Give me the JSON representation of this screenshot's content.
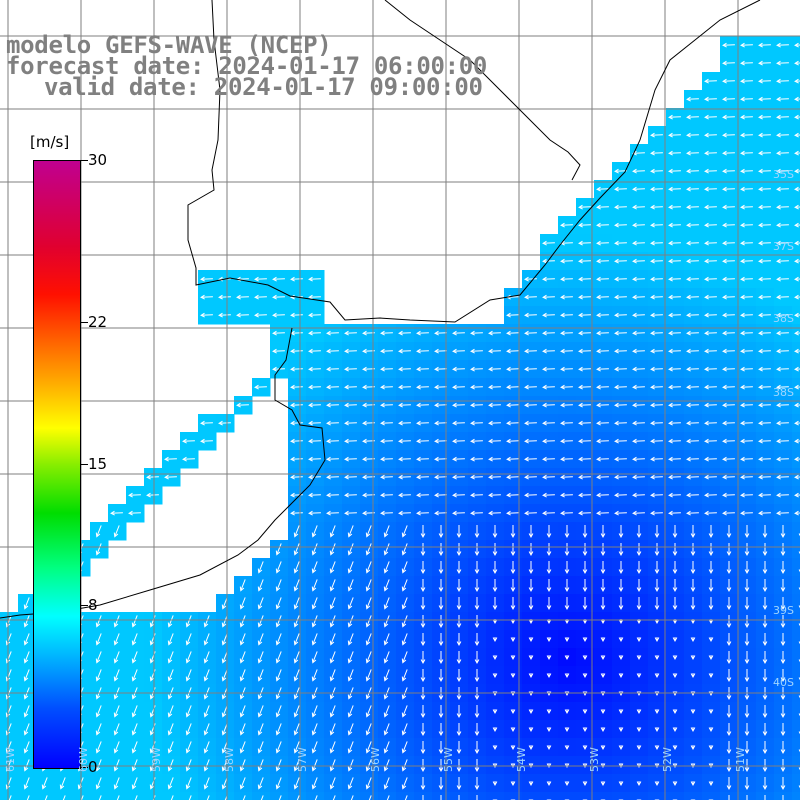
{
  "title": {
    "model": "modelo GEFS-WAVE (NCEP)",
    "forecast": "forecast date: 2024-01-17 06:00:00",
    "valid": "valid date: 2024-01-17 09:00:00"
  },
  "colorbar": {
    "unit": "[m/s]",
    "min": 0,
    "max": 30,
    "ticks": [
      {
        "label": "30",
        "value": 30
      },
      {
        "label": "22",
        "value": 22
      },
      {
        "label": "15",
        "value": 15
      },
      {
        "label": "8",
        "value": 8
      },
      {
        "label": "0",
        "value": 0
      }
    ]
  },
  "latitude_labels": [
    "35S",
    "37S",
    "38S",
    "38S",
    "39S",
    "40S"
  ],
  "longitude_labels": [
    "61W",
    "60W",
    "59W",
    "58W",
    "57W",
    "56W",
    "55W",
    "54W",
    "53W",
    "52W",
    "51W"
  ],
  "colors": {
    "ocean_low": "#0000ff",
    "ocean_mid": "#0a64ff",
    "ocean_high": "#00c8ff",
    "land": "#ffffff",
    "grid": "#808080",
    "title_text": "#808080"
  }
}
